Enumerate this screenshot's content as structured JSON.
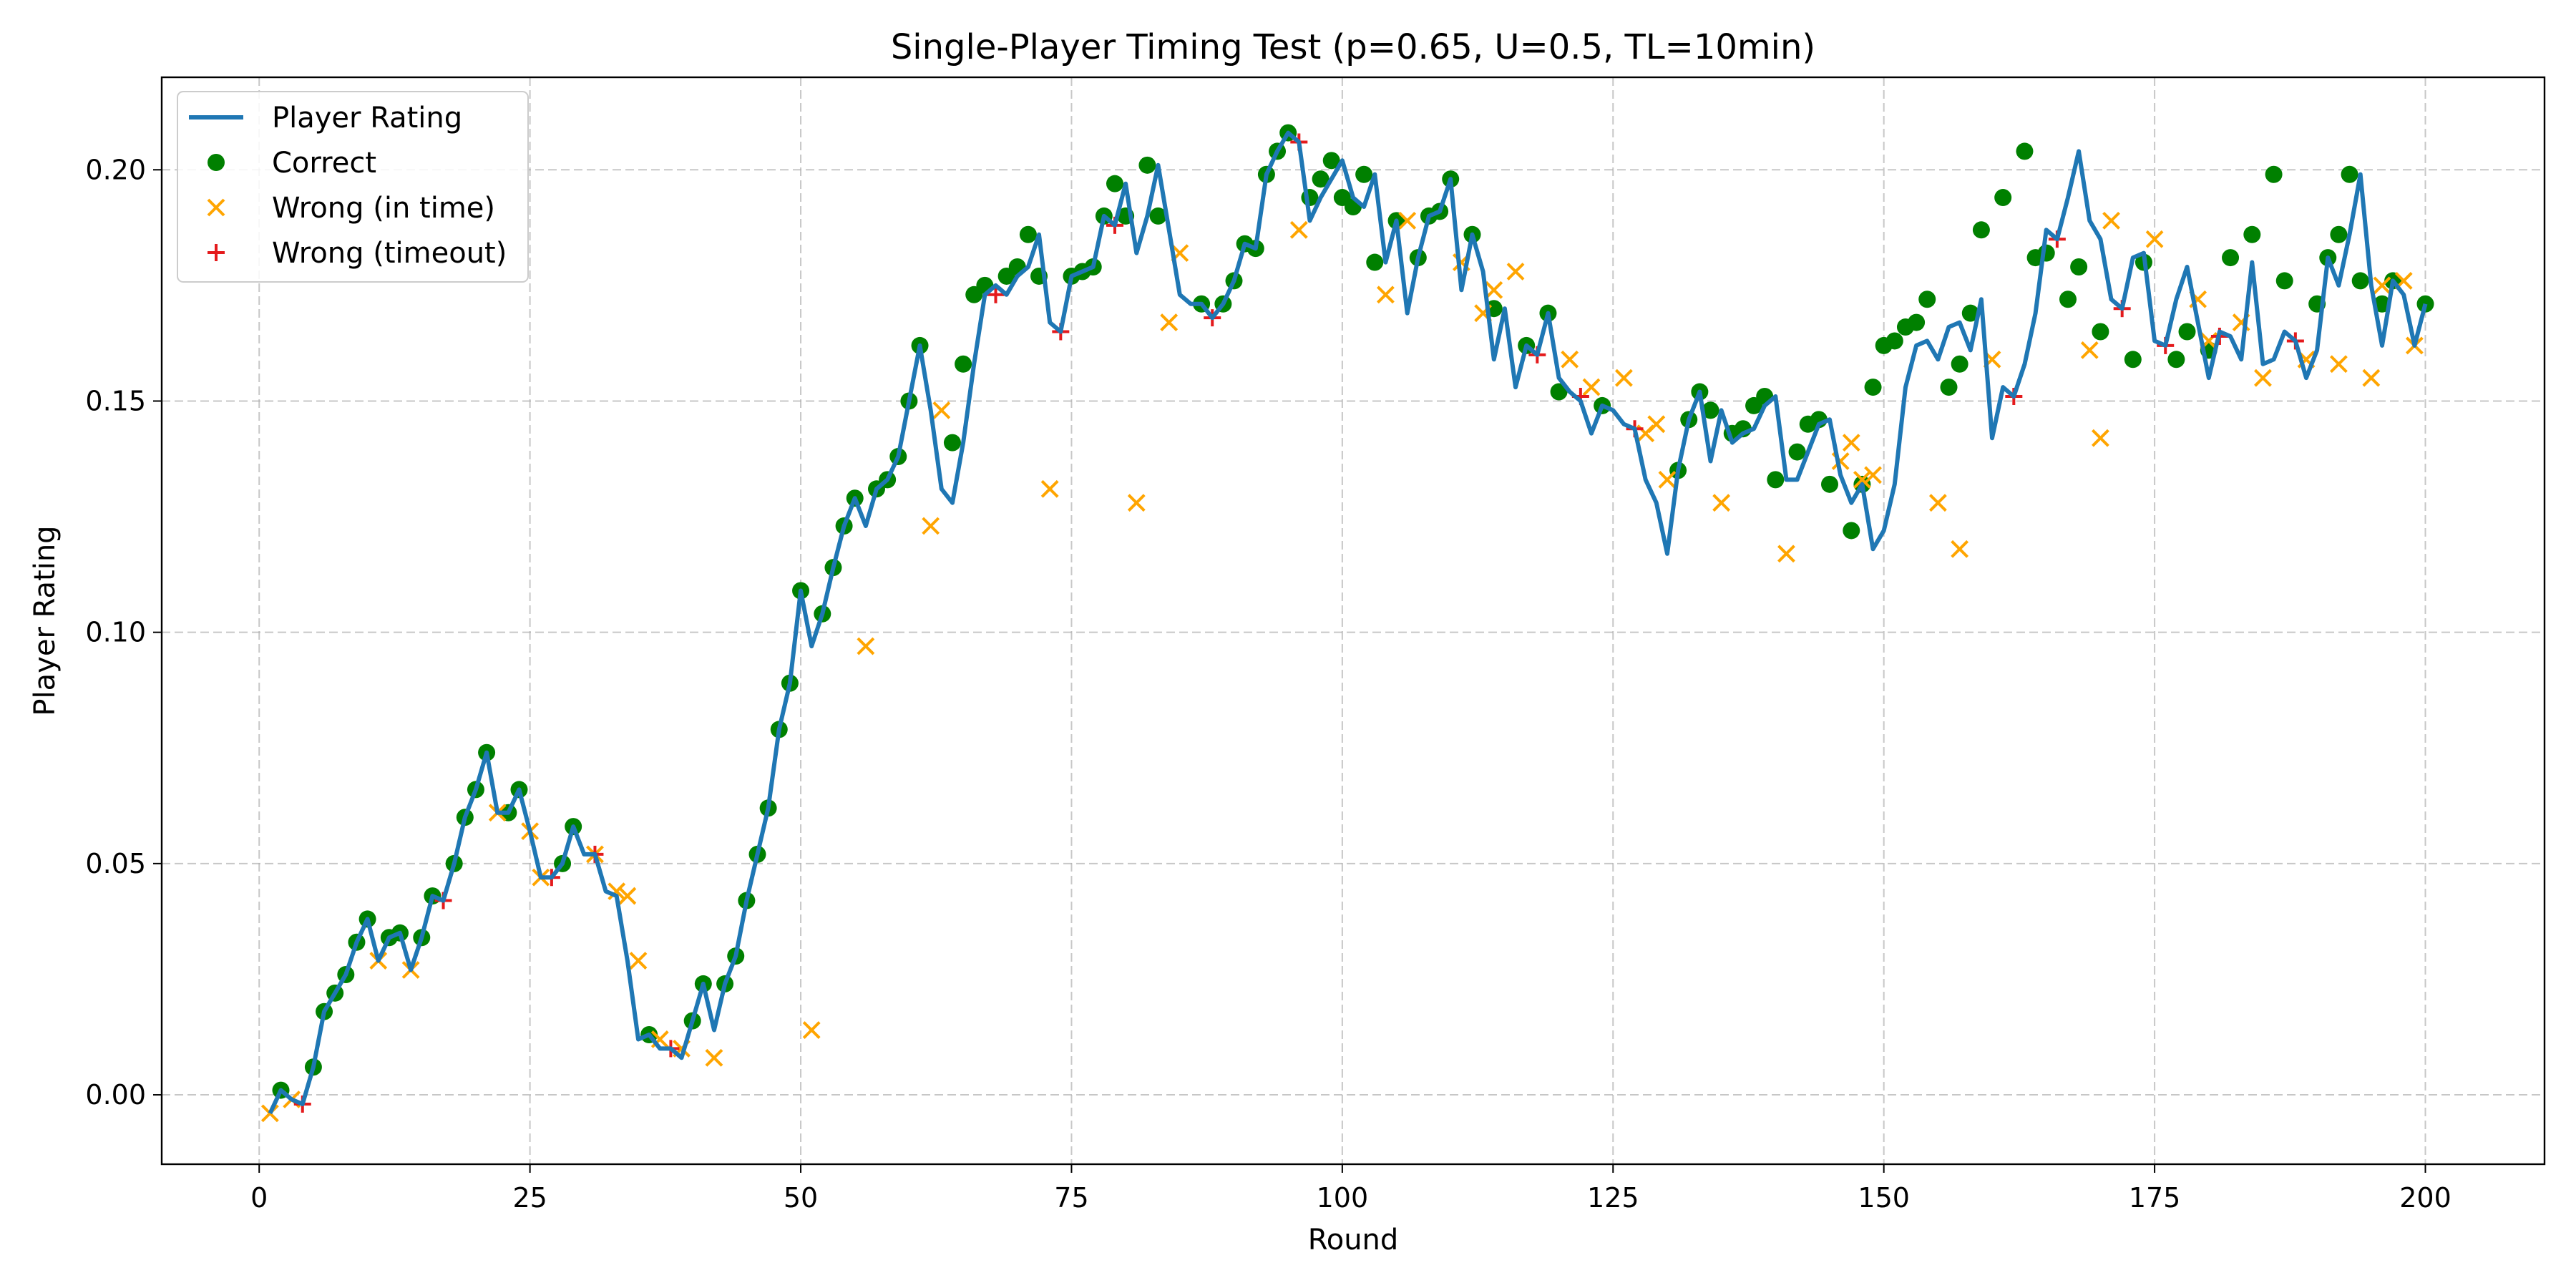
{
  "chart_data": {
    "type": "line",
    "title": "Single-Player Timing Test (p=0.65, U=0.5, TL=10min)",
    "xlabel": "Round",
    "ylabel": "Player Rating",
    "xlim": [
      -9,
      211
    ],
    "ylim": [
      -0.015,
      0.22
    ],
    "xticks": [
      0,
      25,
      50,
      75,
      100,
      125,
      150,
      175,
      200
    ],
    "yticks": [
      0.0,
      0.05,
      0.1,
      0.15,
      0.2
    ],
    "xtick_labels": [
      "0",
      "25",
      "50",
      "75",
      "100",
      "125",
      "150",
      "175",
      "200"
    ],
    "ytick_labels": [
      "0.00",
      "0.05",
      "0.10",
      "0.15",
      "0.20"
    ],
    "grid": true,
    "legend_position": "top-left",
    "colors": {
      "line": "#1f77b4",
      "correct": "#008000",
      "wrong_in_time": "#ffa500",
      "wrong_timeout": "#e41a1c"
    },
    "series": [
      {
        "name": "Player Rating",
        "kind": "line",
        "x": [
          1,
          2,
          3,
          4,
          5,
          6,
          7,
          8,
          9,
          10,
          11,
          12,
          13,
          14,
          15,
          16,
          17,
          18,
          19,
          20,
          21,
          22,
          23,
          24,
          25,
          26,
          27,
          28,
          29,
          30,
          31,
          32,
          33,
          34,
          35,
          36,
          37,
          38,
          39,
          40,
          41,
          42,
          43,
          44,
          45,
          46,
          47,
          48,
          49,
          50,
          51,
          52,
          53,
          54,
          55,
          56,
          57,
          58,
          59,
          60,
          61,
          62,
          63,
          64,
          65,
          66,
          67,
          68,
          69,
          70,
          71,
          72,
          73,
          74,
          75,
          76,
          77,
          78,
          79,
          80,
          81,
          82,
          83,
          84,
          85,
          86,
          87,
          88,
          89,
          90,
          91,
          92,
          93,
          94,
          95,
          96,
          97,
          98,
          99,
          100,
          101,
          102,
          103,
          104,
          105,
          106,
          107,
          108,
          109,
          110,
          111,
          112,
          113,
          114,
          115,
          116,
          117,
          118,
          119,
          120,
          121,
          122,
          123,
          124,
          125,
          126,
          127,
          128,
          129,
          130,
          131,
          132,
          133,
          134,
          135,
          136,
          137,
          138,
          139,
          140,
          141,
          142,
          143,
          144,
          145,
          146,
          147,
          148,
          149,
          150,
          151,
          152,
          153,
          154,
          155,
          156,
          157,
          158,
          159,
          160,
          161,
          162,
          163,
          164,
          165,
          166,
          167,
          168,
          169,
          170,
          171,
          172,
          173,
          174,
          175,
          176,
          177,
          178,
          179,
          180,
          181,
          182,
          183,
          184,
          185,
          186,
          187,
          188,
          189,
          190,
          191,
          192,
          193,
          194,
          195,
          196,
          197,
          198,
          199,
          200
        ],
        "y": [
          -0.004,
          0.001,
          -0.001,
          -0.002,
          0.006,
          0.018,
          0.022,
          0.026,
          0.033,
          0.038,
          0.029,
          0.034,
          0.035,
          0.027,
          0.034,
          0.043,
          0.042,
          0.05,
          0.06,
          0.066,
          0.074,
          0.061,
          0.061,
          0.066,
          0.057,
          0.047,
          0.047,
          0.05,
          0.058,
          0.052,
          0.052,
          0.044,
          0.043,
          0.029,
          0.012,
          0.013,
          0.01,
          0.01,
          0.008,
          0.016,
          0.024,
          0.014,
          0.024,
          0.03,
          0.042,
          0.052,
          0.062,
          0.079,
          0.089,
          0.109,
          0.097,
          0.104,
          0.114,
          0.123,
          0.129,
          0.123,
          0.131,
          0.133,
          0.138,
          0.15,
          0.162,
          0.148,
          0.131,
          0.128,
          0.141,
          0.158,
          0.173,
          0.175,
          0.173,
          0.177,
          0.179,
          0.186,
          0.167,
          0.165,
          0.177,
          0.178,
          0.179,
          0.19,
          0.188,
          0.197,
          0.182,
          0.19,
          0.201,
          0.187,
          0.173,
          0.171,
          0.171,
          0.168,
          0.171,
          0.176,
          0.184,
          0.183,
          0.199,
          0.204,
          0.208,
          0.206,
          0.189,
          0.194,
          0.198,
          0.202,
          0.194,
          0.192,
          0.199,
          0.18,
          0.189,
          0.169,
          0.181,
          0.19,
          0.191,
          0.198,
          0.174,
          0.186,
          0.178,
          0.159,
          0.17,
          0.153,
          0.162,
          0.16,
          0.169,
          0.155,
          0.152,
          0.15,
          0.143,
          0.149,
          0.148,
          0.145,
          0.144,
          0.133,
          0.128,
          0.117,
          0.135,
          0.146,
          0.152,
          0.137,
          0.148,
          0.141,
          0.143,
          0.144,
          0.149,
          0.151,
          0.133,
          0.133,
          0.139,
          0.145,
          0.146,
          0.134,
          0.128,
          0.132,
          0.118,
          0.122,
          0.132,
          0.153,
          0.162,
          0.163,
          0.159,
          0.166,
          0.167,
          0.161,
          0.172,
          0.142,
          0.153,
          0.151,
          0.158,
          0.169,
          0.187,
          0.185,
          0.194,
          0.204,
          0.189,
          0.185,
          0.172,
          0.17,
          0.181,
          0.182,
          0.163,
          0.162,
          0.172,
          0.179,
          0.167,
          0.155,
          0.165,
          0.164,
          0.159,
          0.18,
          0.158,
          0.159,
          0.165,
          0.163,
          0.155,
          0.161,
          0.181,
          0.175,
          0.186,
          0.199,
          0.175,
          0.162,
          0.176,
          0.173,
          0.162,
          0.171
        ]
      },
      {
        "name": "Correct",
        "kind": "scatter",
        "marker": "circle",
        "x": [
          2,
          5,
          6,
          7,
          8,
          9,
          10,
          12,
          13,
          15,
          16,
          18,
          19,
          20,
          21,
          23,
          24,
          28,
          29,
          36,
          40,
          41,
          43,
          44,
          45,
          46,
          47,
          48,
          49,
          50,
          52,
          53,
          54,
          55,
          57,
          58,
          59,
          60,
          61,
          64,
          65,
          66,
          67,
          69,
          70,
          71,
          72,
          75,
          76,
          77,
          78,
          79,
          80,
          82,
          83,
          87,
          89,
          90,
          91,
          92,
          93,
          94,
          95,
          97,
          98,
          99,
          100,
          101,
          102,
          103,
          105,
          107,
          108,
          109,
          110,
          112,
          114,
          117,
          119,
          120,
          124,
          131,
          132,
          133,
          134,
          136,
          137,
          138,
          139,
          140,
          142,
          143,
          144,
          145,
          147,
          148,
          149,
          150,
          151,
          152,
          153,
          154,
          156,
          157,
          158,
          159,
          161,
          163,
          164,
          165,
          167,
          168,
          170,
          173,
          174,
          177,
          178,
          180,
          182,
          184,
          186,
          187,
          190,
          191,
          192,
          193,
          194,
          196,
          197,
          200
        ],
        "y": [
          0.001,
          0.006,
          0.018,
          0.022,
          0.026,
          0.033,
          0.038,
          0.034,
          0.035,
          0.034,
          0.043,
          0.05,
          0.06,
          0.066,
          0.074,
          0.061,
          0.066,
          0.05,
          0.058,
          0.013,
          0.016,
          0.024,
          0.024,
          0.03,
          0.042,
          0.052,
          0.062,
          0.079,
          0.089,
          0.109,
          0.104,
          0.114,
          0.123,
          0.129,
          0.131,
          0.133,
          0.138,
          0.15,
          0.162,
          0.141,
          0.158,
          0.173,
          0.175,
          0.177,
          0.179,
          0.186,
          0.177,
          0.177,
          0.178,
          0.179,
          0.19,
          0.197,
          0.19,
          0.201,
          0.19,
          0.171,
          0.171,
          0.176,
          0.184,
          0.183,
          0.199,
          0.204,
          0.208,
          0.194,
          0.198,
          0.202,
          0.194,
          0.192,
          0.199,
          0.18,
          0.189,
          0.181,
          0.19,
          0.191,
          0.198,
          0.186,
          0.17,
          0.162,
          0.169,
          0.152,
          0.149,
          0.135,
          0.146,
          0.152,
          0.148,
          0.143,
          0.144,
          0.149,
          0.151,
          0.133,
          0.139,
          0.145,
          0.146,
          0.132,
          0.122,
          0.132,
          0.153,
          0.162,
          0.163,
          0.166,
          0.167,
          0.172,
          0.153,
          0.158,
          0.169,
          0.187,
          0.194,
          0.204,
          0.181,
          0.182,
          0.172,
          0.179,
          0.165,
          0.159,
          0.18,
          0.159,
          0.165,
          0.161,
          0.181,
          0.186,
          0.199,
          0.176,
          0.171,
          0.181,
          0.186,
          0.199,
          0.176,
          0.171,
          0.176,
          0.171
        ]
      },
      {
        "name": "Wrong (in time)",
        "kind": "scatter",
        "marker": "x",
        "x": [
          1,
          3,
          11,
          14,
          22,
          25,
          26,
          31,
          33,
          34,
          35,
          37,
          39,
          42,
          51,
          56,
          62,
          63,
          73,
          81,
          84,
          85,
          96,
          104,
          106,
          111,
          113,
          114,
          116,
          121,
          123,
          126,
          128,
          129,
          130,
          135,
          141,
          146,
          147,
          148,
          149,
          155,
          157,
          160,
          169,
          170,
          171,
          175,
          179,
          180,
          183,
          185,
          189,
          192,
          195,
          196,
          198,
          199
        ],
        "y": [
          -0.004,
          -0.001,
          0.029,
          0.027,
          0.061,
          0.057,
          0.047,
          0.052,
          0.044,
          0.043,
          0.029,
          0.012,
          0.01,
          0.008,
          0.014,
          0.097,
          0.123,
          0.148,
          0.131,
          0.128,
          0.167,
          0.182,
          0.187,
          0.173,
          0.189,
          0.18,
          0.169,
          0.174,
          0.178,
          0.159,
          0.153,
          0.155,
          0.143,
          0.145,
          0.133,
          0.128,
          0.117,
          0.137,
          0.141,
          0.133,
          0.134,
          0.128,
          0.118,
          0.159,
          0.161,
          0.142,
          0.189,
          0.185,
          0.172,
          0.163,
          0.167,
          0.155,
          0.159,
          0.158,
          0.155,
          0.175,
          0.176,
          0.162
        ]
      },
      {
        "name": "Wrong (timeout)",
        "kind": "scatter",
        "marker": "plus",
        "x": [
          4,
          17,
          27,
          31,
          38,
          68,
          74,
          79,
          88,
          96,
          118,
          122,
          127,
          162,
          166,
          172,
          176,
          181,
          188
        ],
        "y": [
          -0.002,
          0.042,
          0.047,
          0.052,
          0.01,
          0.173,
          0.165,
          0.188,
          0.168,
          0.206,
          0.16,
          0.151,
          0.144,
          0.151,
          0.185,
          0.17,
          0.162,
          0.164,
          0.163
        ]
      }
    ]
  }
}
